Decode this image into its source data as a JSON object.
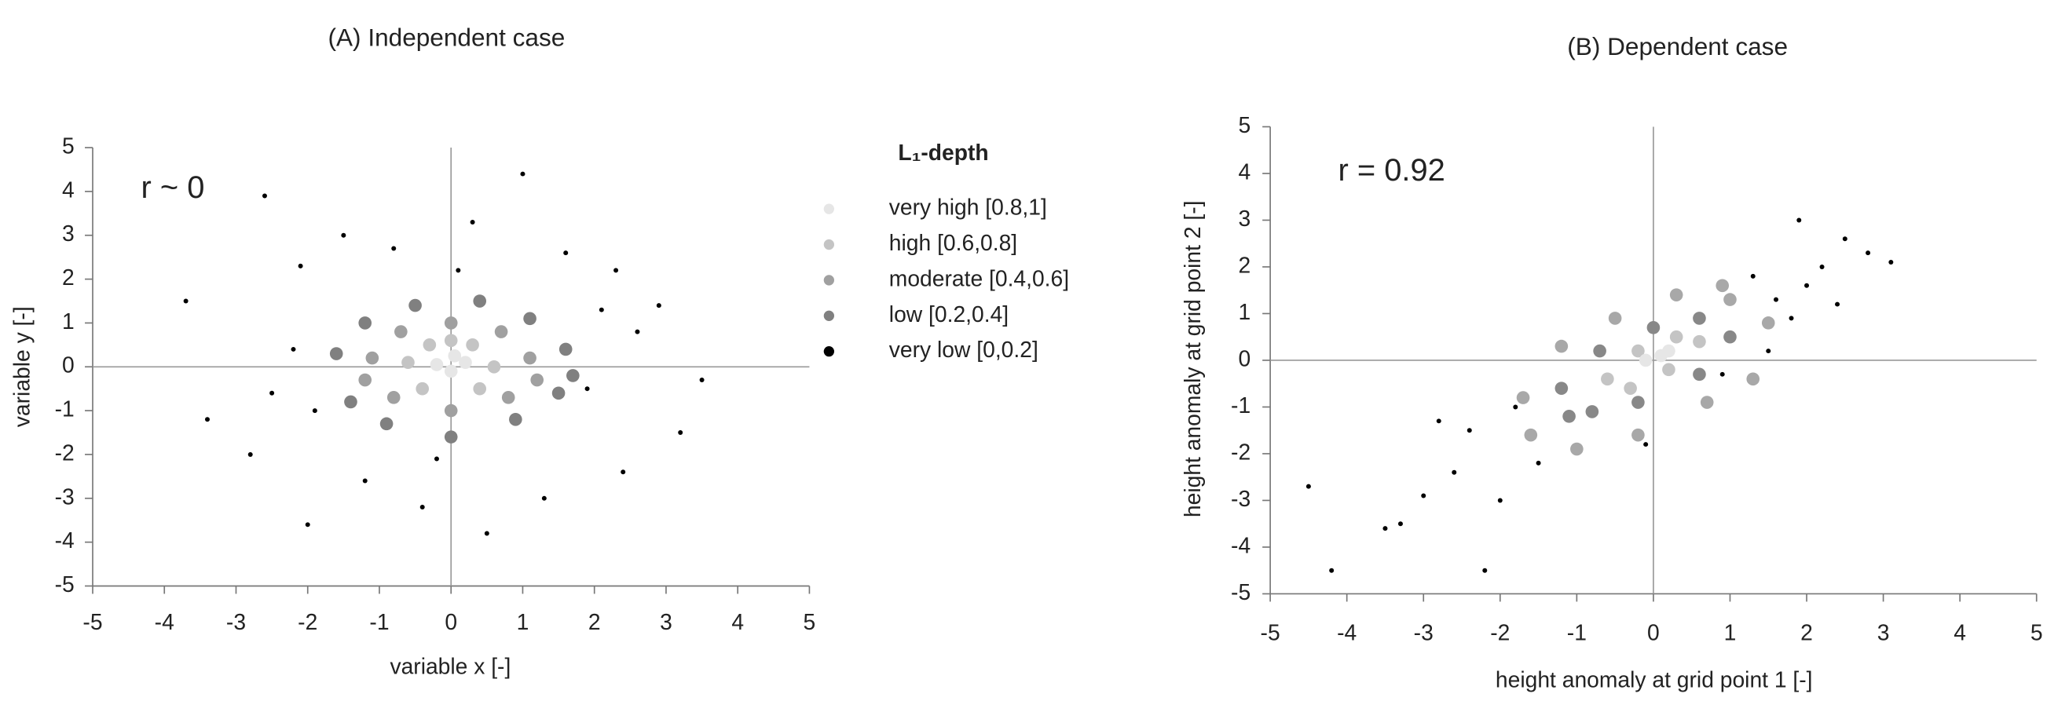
{
  "chart_data": [
    {
      "type": "scatter",
      "title": "(A) Independent case",
      "xlabel": "variable x [-]",
      "ylabel": "variable y [-]",
      "annotation": "r ~ 0",
      "legend_title": "L₁-depth",
      "xlim": [
        -5,
        5
      ],
      "ylim": [
        -5,
        5
      ],
      "xticks": [
        -5,
        -4,
        -3,
        -2,
        -1,
        0,
        1,
        2,
        3,
        4,
        5
      ],
      "yticks": [
        -5,
        -4,
        -3,
        -2,
        -1,
        0,
        1,
        2,
        3,
        4,
        5
      ],
      "series": [
        {
          "name": "very high [0.8,1]",
          "color": "#e6e6e6",
          "x": [
            -0.2,
            0,
            0.2,
            0.05
          ],
          "y": [
            0.05,
            -0.1,
            0.1,
            0.25
          ]
        },
        {
          "name": "high [0.6,0.8]",
          "color": "#c4c4c4",
          "x": [
            -0.6,
            -0.3,
            0.3,
            0.6,
            0.4,
            -0.4,
            0
          ],
          "y": [
            0.1,
            0.5,
            0.5,
            0.0,
            -0.5,
            -0.5,
            0.6
          ]
        },
        {
          "name": "moderate [0.4,0.6]",
          "color": "#a0a0a0",
          "x": [
            -1.1,
            -0.7,
            0,
            0.7,
            1.1,
            0.8,
            0,
            -0.8,
            -1.2,
            1.2
          ],
          "y": [
            0.2,
            0.8,
            1.0,
            0.8,
            0.2,
            -0.7,
            -1.0,
            -0.7,
            -0.3,
            -0.3
          ]
        },
        {
          "name": "low [0.2,0.4]",
          "color": "#808080",
          "x": [
            -1.6,
            -1.2,
            -0.5,
            0.4,
            1.1,
            1.6,
            1.5,
            0.9,
            0,
            -0.9,
            -1.4,
            1.7
          ],
          "y": [
            0.3,
            1.0,
            1.4,
            1.5,
            1.1,
            0.4,
            -0.6,
            -1.2,
            -1.6,
            -1.3,
            -0.8,
            -0.2
          ]
        },
        {
          "name": "very low [0,0.2]",
          "color": "#000000",
          "x": [
            -3.7,
            -2.6,
            -2.1,
            -1.5,
            -0.8,
            0.3,
            1.0,
            1.6,
            2.3,
            2.9,
            3.5,
            3.2,
            2.4,
            1.3,
            0.5,
            -0.4,
            -1.2,
            -2.0,
            -2.8,
            -3.4,
            -2.2,
            1.9,
            -1.9,
            2.1,
            0.1,
            -0.2,
            2.6,
            -2.5
          ],
          "y": [
            1.5,
            3.9,
            2.3,
            3.0,
            2.7,
            3.3,
            4.4,
            2.6,
            2.2,
            1.4,
            -0.3,
            -1.5,
            -2.4,
            -3.0,
            -3.8,
            -3.2,
            -2.6,
            -3.6,
            -2.0,
            -1.2,
            0.4,
            -0.5,
            -1.0,
            1.3,
            2.2,
            -2.1,
            0.8,
            -0.6
          ]
        }
      ]
    },
    {
      "type": "scatter",
      "title": "(B) Dependent case",
      "xlabel": "height anomaly at grid point 1 [-]",
      "ylabel": "height anomaly at grid point 2 [-]",
      "annotation": "r = 0.92",
      "xlim": [
        -5,
        5
      ],
      "ylim": [
        -5,
        5
      ],
      "xticks": [
        -5,
        -4,
        -3,
        -2,
        -1,
        0,
        1,
        2,
        3,
        4,
        5
      ],
      "yticks": [
        -5,
        -4,
        -3,
        -2,
        -1,
        0,
        1,
        2,
        3,
        4,
        5
      ],
      "series": [
        {
          "color": "#e6e6e6",
          "x": [
            -0.1,
            0.1,
            0.2
          ],
          "y": [
            0.0,
            0.1,
            0.2
          ]
        },
        {
          "color": "#c4c4c4",
          "x": [
            -0.6,
            -0.2,
            0.3,
            0.6,
            0.2,
            -0.3
          ],
          "y": [
            -0.4,
            0.2,
            0.5,
            0.4,
            -0.2,
            -0.6
          ]
        },
        {
          "color": "#888888",
          "x": [
            -1.2,
            -0.7,
            0,
            0.6,
            1.0,
            0.6,
            -0.2,
            -0.8,
            -1.1
          ],
          "y": [
            -0.6,
            0.2,
            0.7,
            0.9,
            0.5,
            -0.3,
            -0.9,
            -1.1,
            -1.2
          ]
        },
        {
          "color": "#a8a8a8",
          "x": [
            -1.7,
            -1.2,
            -0.5,
            0.3,
            1.0,
            1.5,
            1.3,
            0.7,
            -0.2,
            -1.0,
            -1.6,
            0.9
          ],
          "y": [
            -0.8,
            0.3,
            0.9,
            1.4,
            1.3,
            0.8,
            -0.4,
            -0.9,
            -1.6,
            -1.9,
            -1.6,
            1.6
          ]
        },
        {
          "color": "#000000",
          "x": [
            -4.5,
            -4.2,
            -3.5,
            -3.0,
            -2.8,
            -2.4,
            -2.2,
            -2.0,
            -1.8,
            -2.6,
            -1.5,
            -3.3,
            1.3,
            1.6,
            1.9,
            2.2,
            2.5,
            2.8,
            3.1,
            1.8,
            2.0,
            1.5,
            2.4,
            0.9,
            -0.1
          ],
          "y": [
            -2.7,
            -4.5,
            -3.6,
            -2.9,
            -1.3,
            -1.5,
            -4.5,
            -3.0,
            -1.0,
            -2.4,
            -2.2,
            -3.5,
            1.8,
            1.3,
            3.0,
            2.0,
            2.6,
            2.3,
            2.1,
            0.9,
            1.6,
            0.2,
            1.2,
            -0.3,
            -1.8
          ]
        }
      ]
    }
  ]
}
